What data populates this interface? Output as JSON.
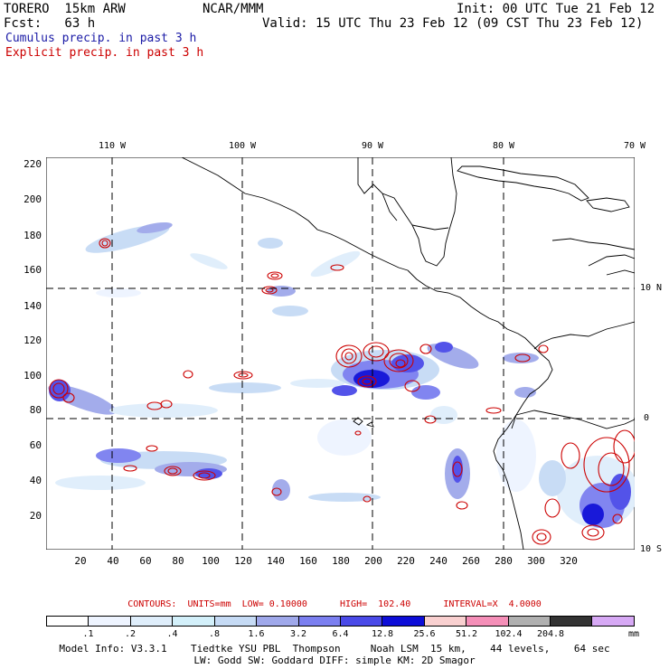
{
  "header": {
    "model": "TORERO  15km ARW",
    "org": "NCAR/MMM",
    "init": "Init: 00 UTC Tue 21 Feb 12",
    "fcst": "Fcst:   63 h",
    "valid": "Valid: 15 UTC Thu 23 Feb 12 (09 CST Thu 23 Feb 12)",
    "cumulus_label": "Cumulus precip. in past 3 h",
    "explicit_label": "Explicit precip. in past 3 h",
    "cumulus_color": "#1a1aa6",
    "explicit_color": "#cc0000"
  },
  "map": {
    "y_ticks": [
      "220",
      "200",
      "180",
      "160",
      "140",
      "120",
      "100",
      "80",
      "60",
      "40",
      "20"
    ],
    "x_ticks": [
      "20",
      "40",
      "60",
      "80",
      "100",
      "120",
      "140",
      "160",
      "180",
      "200",
      "220",
      "240",
      "260",
      "280",
      "300",
      "320"
    ],
    "lon_labels": [
      "110 W",
      "100 W",
      "90 W",
      "80 W",
      "70 W"
    ],
    "lat_labels": [
      "10 N",
      "0",
      "10 S"
    ]
  },
  "contour_info": "CONTOURS:  UNITS=mm  LOW= 0.10000      HIGH=  102.40      INTERVAL=X  4.0000",
  "colorbar": {
    "colors": [
      "#ffffff",
      "#eef4ff",
      "#dfeefb",
      "#d3f0fa",
      "#c6dbf5",
      "#9fa8ea",
      "#7b7ff0",
      "#4a4ae8",
      "#0d0dd8",
      "#f9d0d0",
      "#f58fb8",
      "#b0b0b0",
      "#333333",
      "#d7a9f5"
    ],
    "labels": [
      ".1",
      ".2",
      ".4",
      ".8",
      "1.6",
      "3.2",
      "6.4",
      "12.8",
      "25.6",
      "51.2",
      "102.4",
      "204.8"
    ],
    "units": "mm"
  },
  "footer": {
    "line1": "Model Info: V3.3.1    Tiedtke YSU PBL  Thompson     Noah LSM  15 km,    44 levels,    64 sec",
    "line2": "LW: Godd SW: Goddard DIFF: simple KM: 2D Smagor"
  }
}
